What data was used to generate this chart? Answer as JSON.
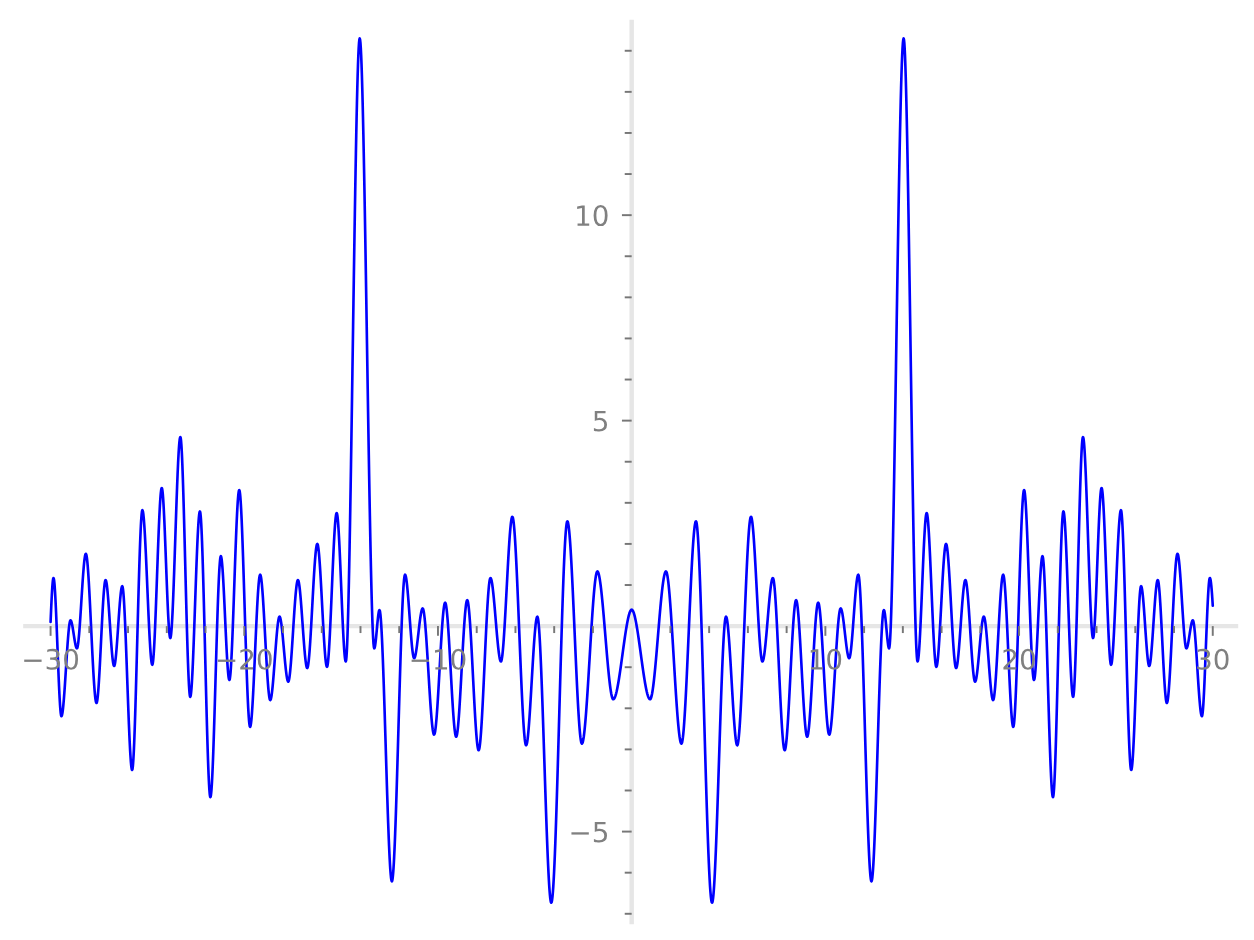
{
  "chart_data": {
    "type": "line",
    "x": [
      -30,
      -29.85,
      -29.44,
      -28.97,
      -28.64,
      -28.18,
      -27.63,
      -27.16,
      -26.72,
      -26.3,
      -25.79,
      -25.26,
      -24.75,
      -24.26,
      -23.82,
      -23.3,
      -22.79,
      -22.29,
      -21.75,
      -21.21,
      -20.77,
      -20.26,
      -19.7,
      -19.18,
      -18.66,
      -18.18,
      -17.73,
      -17.23,
      -16.75,
      -16.23,
      -15.73,
      -15.23,
      -14.76,
      -14.04,
      -13.29,
      -13.02,
      -12.38,
      -11.7,
      -11.23,
      -10.79,
      -10.2,
      -9.63,
      -9.06,
      -8.49,
      -7.9,
      -7.29,
      -6.75,
      -6.16,
      -5.45,
      -4.87,
      -4.15,
      -3.32,
      -2.57,
      -1.77,
      -0.95,
      0,
      0.95,
      1.77,
      2.57,
      3.32,
      4.15,
      4.87,
      5.45,
      6.16,
      6.75,
      7.29,
      7.9,
      8.49,
      9.06,
      9.63,
      10.2,
      10.79,
      11.23,
      11.7,
      12.38,
      13.02,
      13.29,
      14.04,
      14.76,
      15.23,
      15.73,
      16.23,
      16.75,
      17.23,
      17.73,
      18.18,
      18.66,
      19.18,
      19.7,
      20.26,
      20.77,
      21.21,
      21.75,
      22.29,
      22.79,
      23.3,
      23.82,
      24.26,
      24.75,
      25.26,
      25.79,
      26.3,
      26.72,
      27.16,
      27.63,
      28.18,
      28.64,
      28.97,
      29.44,
      29.85,
      30
    ],
    "series": [
      {
        "color": "#0000ff",
        "values": [
          0.1,
          1.17,
          -2.19,
          0.14,
          -0.54,
          1.76,
          -1.87,
          1.12,
          -0.97,
          0.97,
          -3.5,
          2.82,
          -0.94,
          3.36,
          -0.29,
          4.6,
          -1.72,
          2.79,
          -4.16,
          1.7,
          -1.31,
          3.31,
          -2.45,
          1.25,
          -1.8,
          0.23,
          -1.35,
          1.12,
          -1.02,
          2.0,
          -0.99,
          2.75,
          -0.86,
          14.3,
          -0.54,
          0.39,
          -6.21,
          1.25,
          -0.78,
          0.43,
          -2.64,
          0.57,
          -2.69,
          0.63,
          -3.02,
          1.17,
          -0.86,
          2.66,
          -2.9,
          0.23,
          -6.73,
          2.55,
          -2.86,
          1.33,
          -1.78,
          0.4,
          -1.78,
          1.33,
          -2.86,
          2.55,
          -6.73,
          0.23,
          -2.9,
          2.66,
          -0.86,
          1.17,
          -3.02,
          0.63,
          -2.69,
          0.57,
          -2.64,
          0.43,
          -0.78,
          1.25,
          -6.21,
          0.39,
          -0.54,
          14.3,
          -0.86,
          2.75,
          -0.99,
          2.0,
          -1.02,
          1.12,
          -1.35,
          0.23,
          -1.8,
          1.25,
          -2.45,
          3.31,
          -1.31,
          1.7,
          -4.16,
          2.79,
          -1.72,
          4.6,
          -0.29,
          3.36,
          -0.94,
          2.82,
          -3.5,
          0.97,
          -0.97,
          1.12,
          -1.87,
          1.76,
          -0.54,
          0.14,
          -2.19,
          1.17,
          0.5
        ]
      }
    ],
    "xlim": [
      -31.3,
      31.2
    ],
    "ylim": [
      -7.2,
      14.7
    ],
    "xticks": [
      {
        "value": -30,
        "label": "−30"
      },
      {
        "value": -28,
        "label": null
      },
      {
        "value": -26,
        "label": null
      },
      {
        "value": -24,
        "label": null
      },
      {
        "value": -22,
        "label": null
      },
      {
        "value": -20,
        "label": "−20"
      },
      {
        "value": -18,
        "label": null
      },
      {
        "value": -16,
        "label": null
      },
      {
        "value": -14,
        "label": null
      },
      {
        "value": -12,
        "label": null
      },
      {
        "value": -10,
        "label": "−10"
      },
      {
        "value": -8,
        "label": null
      },
      {
        "value": -6,
        "label": null
      },
      {
        "value": -4,
        "label": null
      },
      {
        "value": -2,
        "label": null
      },
      {
        "value": 2,
        "label": null
      },
      {
        "value": 4,
        "label": null
      },
      {
        "value": 6,
        "label": null
      },
      {
        "value": 8,
        "label": null
      },
      10,
      {
        "value": 12,
        "label": null
      },
      {
        "value": 14,
        "label": null
      },
      {
        "value": 16,
        "label": null
      },
      {
        "value": 18,
        "label": null
      },
      20,
      {
        "value": 22,
        "label": null
      },
      {
        "value": 24,
        "label": null
      },
      {
        "value": 26,
        "label": null
      },
      {
        "value": 28,
        "label": null
      },
      30
    ],
    "yticks": [
      {
        "value": -7,
        "label": null
      },
      {
        "value": -6,
        "label": null
      },
      {
        "value": -5,
        "label": "−5"
      },
      {
        "value": -4,
        "label": null
      },
      {
        "value": -3,
        "label": null
      },
      {
        "value": -2,
        "label": null
      },
      {
        "value": -1,
        "label": null
      },
      {
        "value": 1,
        "label": null
      },
      {
        "value": 2,
        "label": null
      },
      {
        "value": 3,
        "label": null
      },
      {
        "value": 4,
        "label": null
      },
      5,
      {
        "value": 6,
        "label": null
      },
      {
        "value": 7,
        "label": null
      },
      {
        "value": 8,
        "label": null
      },
      {
        "value": 9,
        "label": null
      },
      10,
      {
        "value": 11,
        "label": null
      },
      {
        "value": 12,
        "label": null
      },
      {
        "value": 13,
        "label": null
      },
      {
        "value": 14,
        "label": null
      }
    ]
  }
}
